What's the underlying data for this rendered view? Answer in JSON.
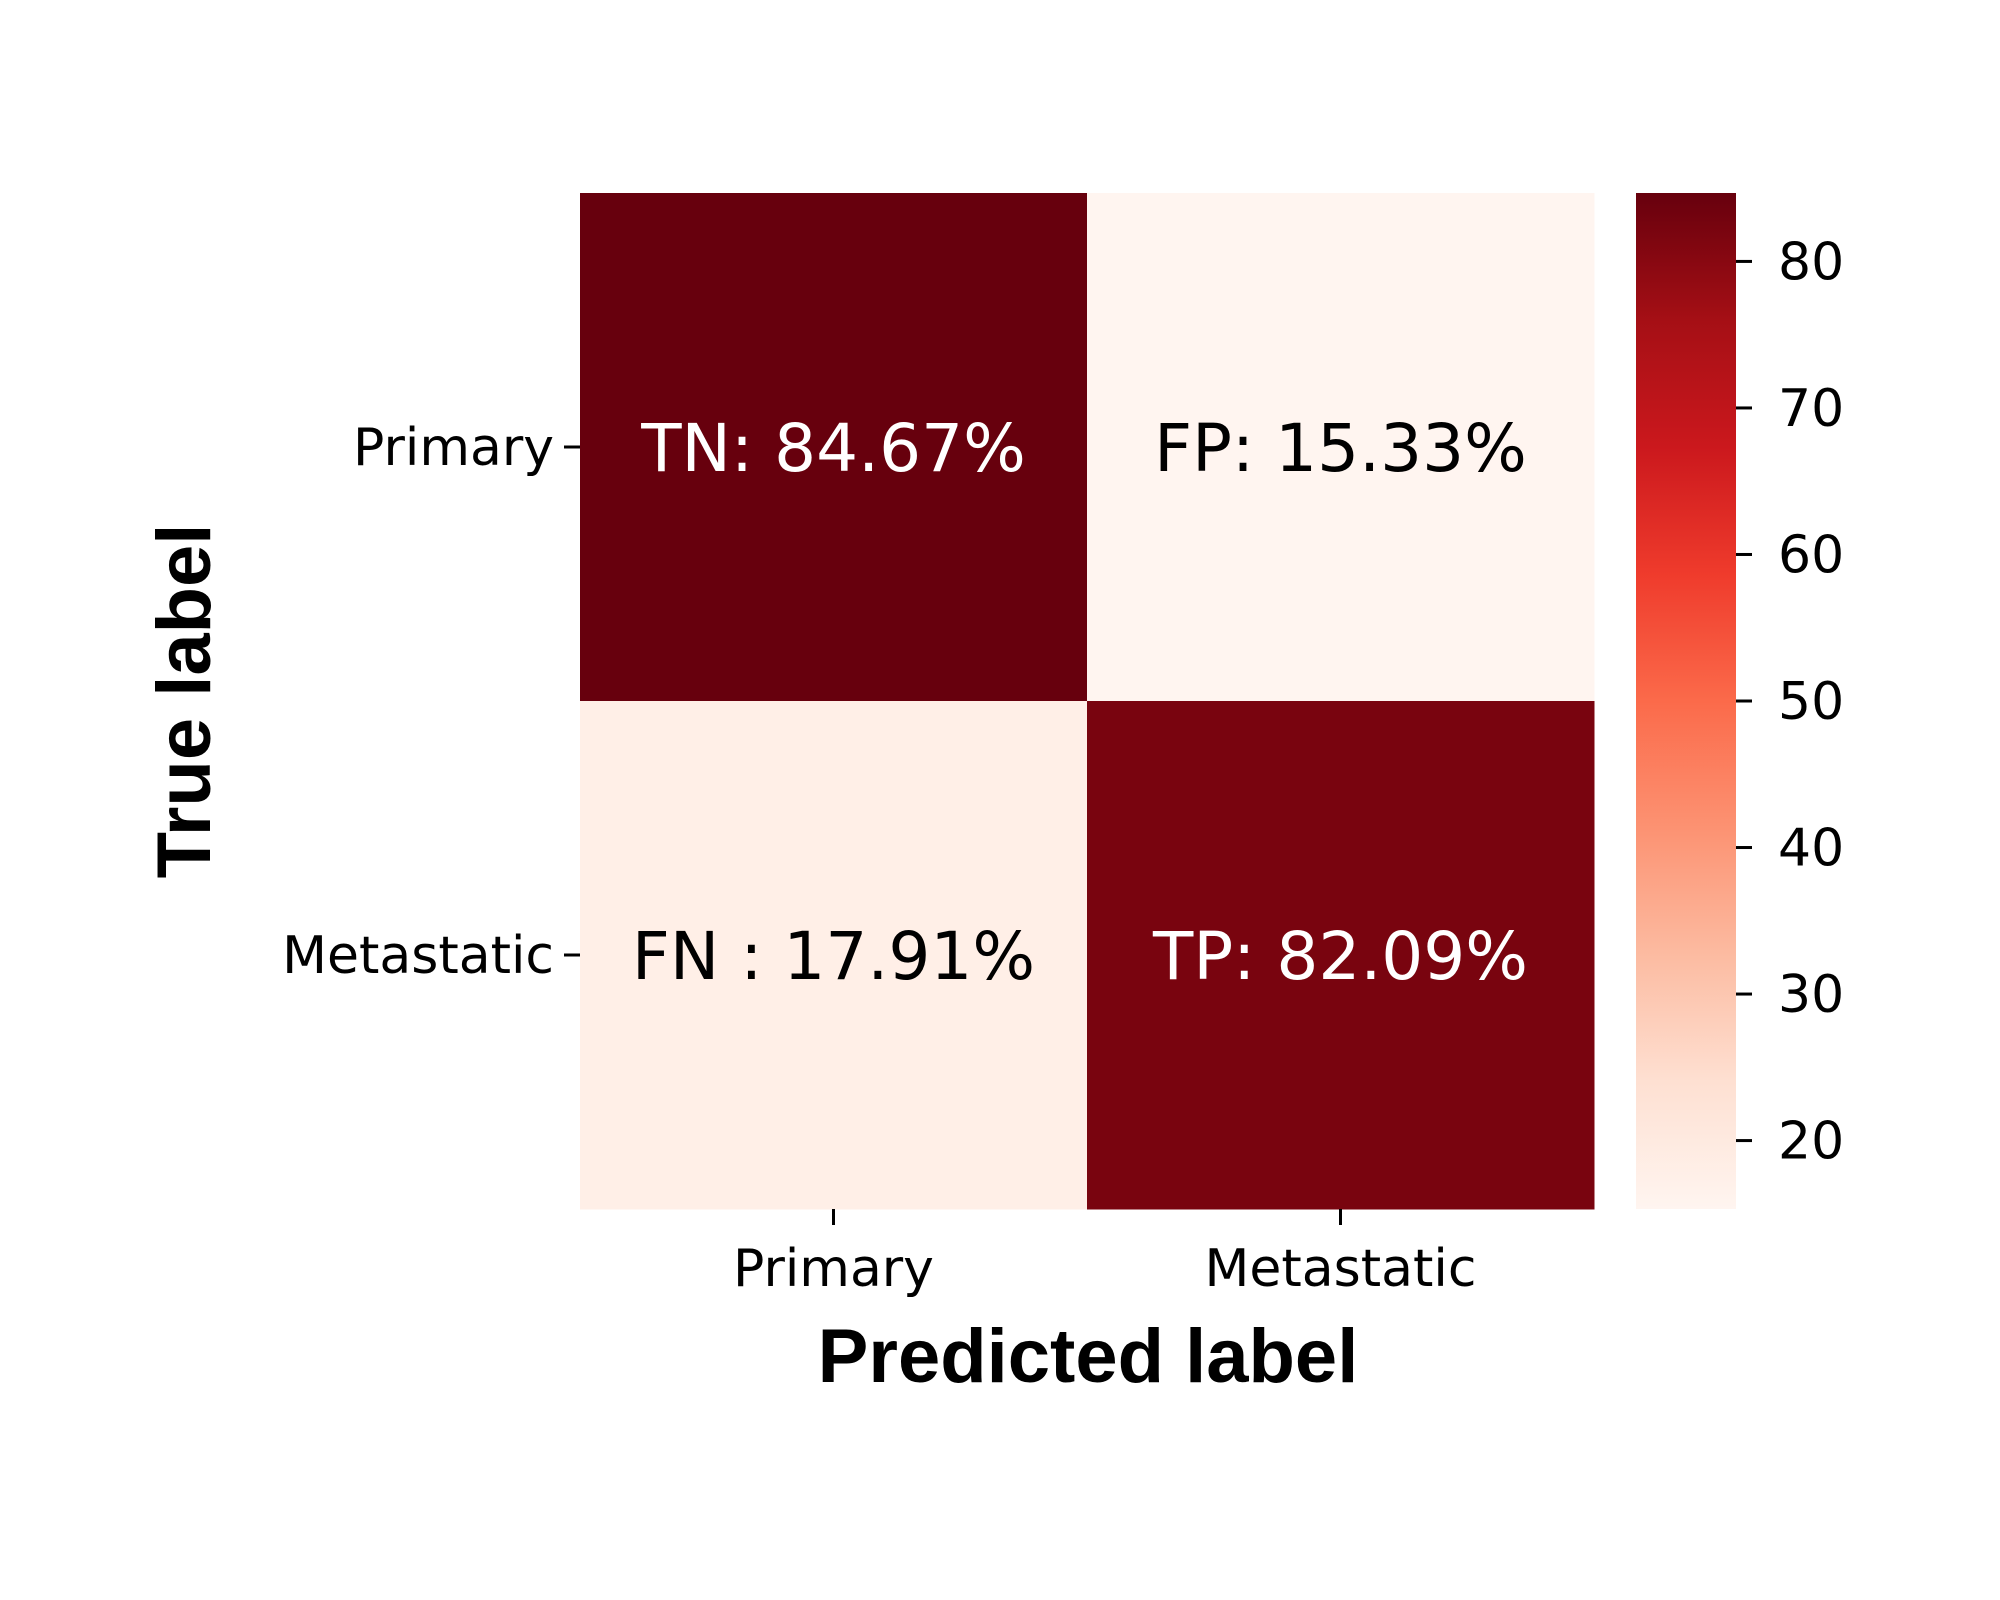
{
  "chart_data": {
    "type": "heatmap",
    "title": "",
    "xlabel": "Predicted label",
    "ylabel": "True label",
    "x_categories": [
      "Primary",
      "Metastatic"
    ],
    "y_categories": [
      "Primary",
      "Metastatic"
    ],
    "values": [
      [
        84.67,
        15.33
      ],
      [
        17.91,
        82.09
      ]
    ],
    "cell_labels": [
      [
        "TN: 84.67%",
        "FP: 15.33%"
      ],
      [
        "FN : 17.91%",
        "TP: 82.09%"
      ]
    ],
    "colormap": "Reds",
    "color_range": [
      15.33,
      84.67
    ],
    "colorbar_ticks": [
      20,
      30,
      40,
      50,
      60,
      70,
      80
    ],
    "grid": false,
    "legend": "colorbar-right"
  }
}
